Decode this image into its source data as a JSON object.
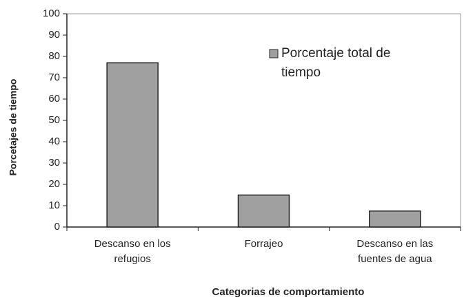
{
  "chart_data": {
    "type": "bar",
    "xlabel": "Categorias de comportamiento",
    "ylabel": "Porcetajes de tiempo",
    "categories": [
      "Descanso en los refugios",
      "Forrajeo",
      "Descanso en las fuentes de agua"
    ],
    "series": [
      {
        "name": "Porcentaje total de tiempo",
        "color": "#a0a0a0",
        "values": [
          77,
          15,
          7.5
        ]
      }
    ],
    "ylim": [
      0,
      100
    ],
    "yticks": [
      0,
      10,
      20,
      30,
      40,
      50,
      60,
      70,
      80,
      90,
      100
    ],
    "legend": "upper right"
  }
}
